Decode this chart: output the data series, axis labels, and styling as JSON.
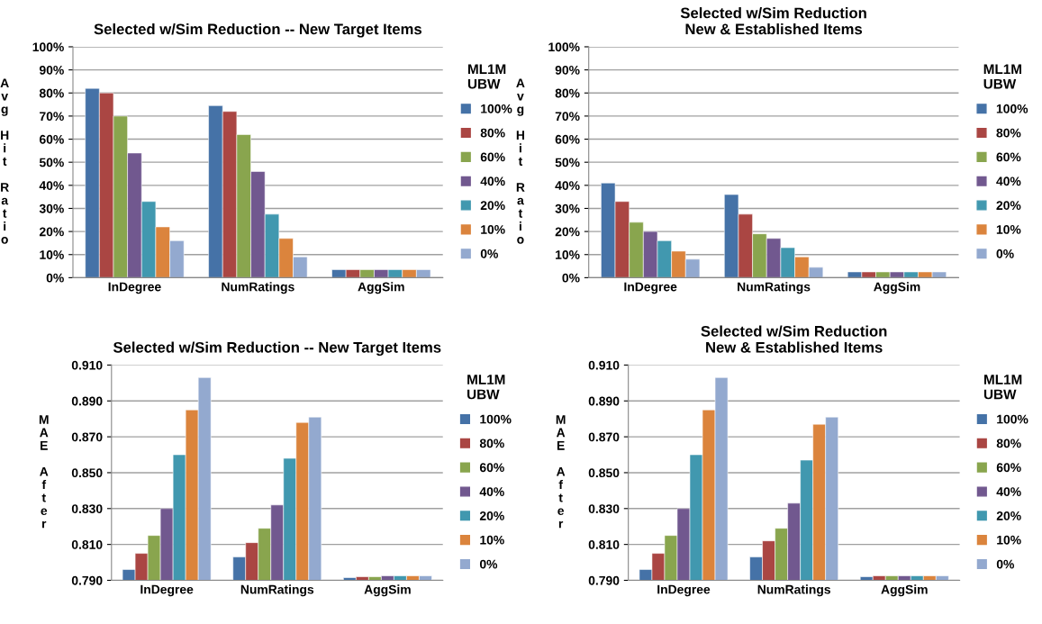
{
  "chart_data": [
    {
      "type": "bar",
      "title": "Selected w/Sim Reduction -- New Target Items",
      "ylabel": "Avg Hit Ratio",
      "legend_title": "ML1M\nUBW",
      "categories": [
        "InDegree",
        "NumRatings",
        "AggSim"
      ],
      "series": [
        {
          "name": "100%",
          "color": "#4572a7",
          "values": [
            82,
            74.5,
            3.5
          ]
        },
        {
          "name": "80%",
          "color": "#aa4643",
          "values": [
            80,
            72,
            3.5
          ]
        },
        {
          "name": "60%",
          "color": "#89a54e",
          "values": [
            70,
            62,
            3.5
          ]
        },
        {
          "name": "40%",
          "color": "#71588f",
          "values": [
            54,
            46,
            3.5
          ]
        },
        {
          "name": "20%",
          "color": "#4198af",
          "values": [
            33,
            27.5,
            3.5
          ]
        },
        {
          "name": "10%",
          "color": "#db843d",
          "values": [
            22,
            17,
            3.5
          ]
        },
        {
          "name": "0%",
          "color": "#93a9cf",
          "values": [
            16,
            9,
            3.5
          ]
        }
      ],
      "ylim": [
        0,
        100
      ],
      "yticks": [
        {
          "value": 0,
          "label": "0%"
        },
        {
          "value": 10,
          "label": "10%"
        },
        {
          "value": 20,
          "label": "20%"
        },
        {
          "value": 30,
          "label": "30%"
        },
        {
          "value": 40,
          "label": "40%"
        },
        {
          "value": 50,
          "label": "50%"
        },
        {
          "value": 60,
          "label": "60%"
        },
        {
          "value": 70,
          "label": "70%"
        },
        {
          "value": 80,
          "label": "80%"
        },
        {
          "value": 90,
          "label": "90%"
        },
        {
          "value": 100,
          "label": "100%"
        }
      ],
      "grid": "y",
      "legend": "right"
    },
    {
      "type": "bar",
      "title": "Selected w/Sim Reduction\nNew & Established Items",
      "ylabel": "Avg Hit Ratio",
      "legend_title": "ML1M\nUBW",
      "categories": [
        "InDegree",
        "NumRatings",
        "AggSim"
      ],
      "series": [
        {
          "name": "100%",
          "color": "#4572a7",
          "values": [
            41,
            36,
            2.5
          ]
        },
        {
          "name": "80%",
          "color": "#aa4643",
          "values": [
            33,
            27.5,
            2.5
          ]
        },
        {
          "name": "60%",
          "color": "#89a54e",
          "values": [
            24,
            19,
            2.5
          ]
        },
        {
          "name": "40%",
          "color": "#71588f",
          "values": [
            20,
            17,
            2.5
          ]
        },
        {
          "name": "20%",
          "color": "#4198af",
          "values": [
            16,
            13,
            2.5
          ]
        },
        {
          "name": "10%",
          "color": "#db843d",
          "values": [
            11.5,
            9,
            2.5
          ]
        },
        {
          "name": "0%",
          "color": "#93a9cf",
          "values": [
            8,
            4.5,
            2.5
          ]
        }
      ],
      "ylim": [
        0,
        100
      ],
      "yticks": [
        {
          "value": 0,
          "label": "0%"
        },
        {
          "value": 10,
          "label": "10%"
        },
        {
          "value": 20,
          "label": "20%"
        },
        {
          "value": 30,
          "label": "30%"
        },
        {
          "value": 40,
          "label": "40%"
        },
        {
          "value": 50,
          "label": "50%"
        },
        {
          "value": 60,
          "label": "60%"
        },
        {
          "value": 70,
          "label": "70%"
        },
        {
          "value": 80,
          "label": "80%"
        },
        {
          "value": 90,
          "label": "90%"
        },
        {
          "value": 100,
          "label": "100%"
        }
      ],
      "grid": "y",
      "legend": "right"
    },
    {
      "type": "bar",
      "title": "Selected w/Sim Reduction -- New Target Items",
      "ylabel": "MAE After",
      "legend_title": "ML1M\nUBW",
      "categories": [
        "InDegree",
        "NumRatings",
        "AggSim"
      ],
      "series": [
        {
          "name": "100%",
          "color": "#4572a7",
          "values": [
            0.796,
            0.803,
            0.7915
          ]
        },
        {
          "name": "80%",
          "color": "#aa4643",
          "values": [
            0.805,
            0.811,
            0.792
          ]
        },
        {
          "name": "60%",
          "color": "#89a54e",
          "values": [
            0.815,
            0.819,
            0.792
          ]
        },
        {
          "name": "40%",
          "color": "#71588f",
          "values": [
            0.83,
            0.832,
            0.7925
          ]
        },
        {
          "name": "20%",
          "color": "#4198af",
          "values": [
            0.86,
            0.858,
            0.7925
          ]
        },
        {
          "name": "10%",
          "color": "#db843d",
          "values": [
            0.885,
            0.878,
            0.7925
          ]
        },
        {
          "name": "0%",
          "color": "#93a9cf",
          "values": [
            0.903,
            0.881,
            0.7925
          ]
        }
      ],
      "ylim": [
        0.79,
        0.91
      ],
      "yticks": [
        {
          "value": 0.79,
          "label": "0.790"
        },
        {
          "value": 0.81,
          "label": "0.810"
        },
        {
          "value": 0.83,
          "label": "0.830"
        },
        {
          "value": 0.85,
          "label": "0.850"
        },
        {
          "value": 0.87,
          "label": "0.870"
        },
        {
          "value": 0.89,
          "label": "0.890"
        },
        {
          "value": 0.91,
          "label": "0.910"
        }
      ],
      "grid": "y",
      "legend": "right"
    },
    {
      "type": "bar",
      "title": "Selected w/Sim Reduction\nNew & Established Items",
      "ylabel": "MAE After",
      "legend_title": "ML1M\nUBW",
      "categories": [
        "InDegree",
        "NumRatings",
        "AggSim"
      ],
      "series": [
        {
          "name": "100%",
          "color": "#4572a7",
          "values": [
            0.796,
            0.803,
            0.792
          ]
        },
        {
          "name": "80%",
          "color": "#aa4643",
          "values": [
            0.805,
            0.812,
            0.7925
          ]
        },
        {
          "name": "60%",
          "color": "#89a54e",
          "values": [
            0.815,
            0.819,
            0.7925
          ]
        },
        {
          "name": "40%",
          "color": "#71588f",
          "values": [
            0.83,
            0.833,
            0.7925
          ]
        },
        {
          "name": "20%",
          "color": "#4198af",
          "values": [
            0.86,
            0.857,
            0.7925
          ]
        },
        {
          "name": "10%",
          "color": "#db843d",
          "values": [
            0.885,
            0.877,
            0.7925
          ]
        },
        {
          "name": "0%",
          "color": "#93a9cf",
          "values": [
            0.903,
            0.881,
            0.7925
          ]
        }
      ],
      "ylim": [
        0.79,
        0.91
      ],
      "yticks": [
        {
          "value": 0.79,
          "label": "0.790"
        },
        {
          "value": 0.81,
          "label": "0.810"
        },
        {
          "value": 0.83,
          "label": "0.830"
        },
        {
          "value": 0.85,
          "label": "0.850"
        },
        {
          "value": 0.87,
          "label": "0.870"
        },
        {
          "value": 0.89,
          "label": "0.890"
        },
        {
          "value": 0.91,
          "label": "0.910"
        }
      ],
      "grid": "y",
      "legend": "right"
    }
  ]
}
